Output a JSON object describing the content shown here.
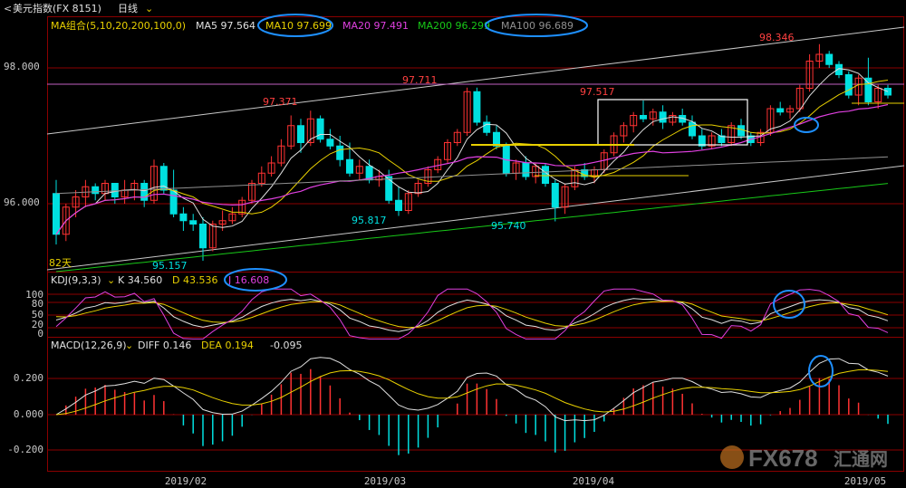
{
  "title": {
    "icon": "back-arrow-icon",
    "name": "美元指数(FX 8151)",
    "period": "日线",
    "dropdown_icon": "chevron-down-icon"
  },
  "ma_legend": {
    "group": "MA组合(5,10,20,200,100,0)",
    "items": [
      {
        "label": "MA5 97.564",
        "color": "#e0e0e0"
      },
      {
        "label": "MA10 97.699",
        "color": "#e8d000",
        "circled": true
      },
      {
        "label": "MA20 97.491",
        "color": "#e040e0"
      },
      {
        "label": "MA200 96.299",
        "color": "#18c818"
      },
      {
        "label": "MA100 96.689",
        "color": "#909090",
        "circled": true
      }
    ]
  },
  "kdj_legend": {
    "group": "KDJ(9,3,3)",
    "items": [
      {
        "label": "K 34.560",
        "color": "#e0e0e0"
      },
      {
        "label": "D 43.536",
        "color": "#e8d000"
      },
      {
        "label": "J 16.608",
        "color": "#e040e0",
        "circled": true
      }
    ]
  },
  "macd_legend": {
    "group": "MACD(12,26,9)",
    "items": [
      {
        "label": "DIFF 0.146",
        "color": "#e0e0e0"
      },
      {
        "label": "DEA 0.194",
        "color": "#e8d000"
      },
      {
        "label": "-0.095",
        "color": "#e0e0e0"
      }
    ]
  },
  "price_axis": {
    "ticks": [
      "98.000",
      "96.000"
    ]
  },
  "kdj_axis": {
    "ticks": [
      "100",
      "80",
      "50",
      "20",
      "0"
    ]
  },
  "macd_axis": {
    "ticks": [
      "0.200",
      "0.000",
      "-0.200"
    ]
  },
  "x_axis": {
    "ticks": [
      "2019/02",
      "2019/03",
      "2019/04",
      "2019/05"
    ]
  },
  "annotations": {
    "high1": "97.371",
    "high2": "97.711",
    "high3": "97.517",
    "high4": "98.346",
    "low1": "95.157",
    "low2": "95.817",
    "low3": "95.740",
    "days": "82天"
  },
  "watermark": {
    "text": "FX678",
    "text2": "汇通网"
  },
  "colors": {
    "up": "#ff3232",
    "down": "#00e0e0",
    "grid": "#8b0000",
    "ma5": "#e0e0e0",
    "ma10": "#e8d000",
    "ma20": "#e040e0",
    "ma100": "#909090",
    "ma200": "#18c818",
    "circle": "#1e90ff",
    "trend": "#c8c8c8"
  },
  "chart_data": [
    {
      "type": "candlestick",
      "title": "美元指数(FX 8151) 日线",
      "ylim": [
        95.0,
        98.6
      ],
      "x": [
        "2019/02",
        "2019/03",
        "2019/04",
        "2019/05"
      ],
      "ohlc": [
        [
          96.15,
          96.35,
          95.4,
          95.55
        ],
        [
          95.55,
          96.0,
          95.45,
          95.95
        ],
        [
          95.95,
          96.2,
          95.8,
          96.1
        ],
        [
          96.1,
          96.35,
          95.95,
          96.25
        ],
        [
          96.25,
          96.3,
          96.05,
          96.15
        ],
        [
          96.15,
          96.35,
          96.05,
          96.3
        ],
        [
          96.3,
          96.3,
          96.0,
          96.1
        ],
        [
          96.1,
          96.35,
          96.0,
          96.2
        ],
        [
          96.2,
          96.35,
          96.05,
          96.3
        ],
        [
          96.3,
          96.35,
          95.95,
          96.05
        ],
        [
          96.05,
          96.65,
          96.0,
          96.55
        ],
        [
          96.55,
          96.6,
          96.15,
          96.2
        ],
        [
          96.2,
          96.5,
          95.8,
          95.85
        ],
        [
          95.85,
          95.95,
          95.6,
          95.75
        ],
        [
          95.75,
          95.85,
          95.6,
          95.7
        ],
        [
          95.7,
          95.8,
          95.16,
          95.35
        ],
        [
          95.35,
          95.75,
          95.3,
          95.7
        ],
        [
          95.7,
          95.9,
          95.6,
          95.75
        ],
        [
          95.75,
          95.95,
          95.7,
          95.85
        ],
        [
          95.85,
          96.1,
          95.8,
          96.05
        ],
        [
          96.05,
          96.35,
          96.0,
          96.3
        ],
        [
          96.3,
          96.55,
          96.25,
          96.45
        ],
        [
          96.45,
          96.7,
          96.4,
          96.6
        ],
        [
          96.6,
          96.95,
          96.55,
          96.85
        ],
        [
          96.85,
          97.3,
          96.8,
          97.15
        ],
        [
          97.15,
          97.25,
          96.75,
          96.9
        ],
        [
          96.9,
          97.37,
          96.85,
          97.25
        ],
        [
          97.25,
          97.3,
          96.9,
          96.95
        ],
        [
          96.95,
          97.1,
          96.8,
          96.85
        ],
        [
          96.85,
          97.0,
          96.55,
          96.65
        ],
        [
          96.65,
          96.9,
          96.4,
          96.45
        ],
        [
          96.45,
          96.65,
          96.35,
          96.55
        ],
        [
          96.55,
          96.65,
          96.3,
          96.35
        ],
        [
          96.35,
          96.5,
          96.25,
          96.4
        ],
        [
          96.4,
          96.5,
          96.0,
          96.05
        ],
        [
          96.05,
          96.25,
          95.82,
          95.9
        ],
        [
          95.9,
          96.2,
          95.85,
          96.15
        ],
        [
          96.15,
          96.35,
          96.1,
          96.3
        ],
        [
          96.3,
          96.55,
          96.25,
          96.5
        ],
        [
          96.5,
          96.7,
          96.45,
          96.65
        ],
        [
          96.65,
          96.95,
          96.6,
          96.9
        ],
        [
          96.9,
          97.1,
          96.85,
          97.05
        ],
        [
          97.05,
          97.71,
          97.0,
          97.65
        ],
        [
          97.65,
          97.71,
          97.15,
          97.2
        ],
        [
          97.2,
          97.3,
          97.0,
          97.05
        ],
        [
          97.05,
          97.15,
          96.8,
          96.85
        ],
        [
          96.85,
          96.9,
          96.4,
          96.45
        ],
        [
          96.45,
          96.65,
          96.35,
          96.6
        ],
        [
          96.6,
          96.7,
          96.35,
          96.4
        ],
        [
          96.4,
          96.6,
          96.3,
          96.55
        ],
        [
          96.55,
          96.6,
          96.25,
          96.3
        ],
        [
          96.3,
          96.35,
          95.74,
          95.95
        ],
        [
          95.95,
          96.3,
          95.85,
          96.25
        ],
        [
          96.25,
          96.55,
          96.2,
          96.5
        ],
        [
          96.5,
          96.6,
          96.35,
          96.4
        ],
        [
          96.4,
          96.55,
          96.3,
          96.5
        ],
        [
          96.5,
          96.8,
          96.45,
          96.75
        ],
        [
          96.75,
          97.05,
          96.7,
          97.0
        ],
        [
          97.0,
          97.2,
          96.9,
          97.15
        ],
        [
          97.15,
          97.35,
          97.05,
          97.3
        ],
        [
          97.3,
          97.52,
          97.2,
          97.25
        ],
        [
          97.25,
          97.4,
          97.15,
          97.35
        ],
        [
          97.35,
          97.45,
          97.1,
          97.2
        ],
        [
          97.2,
          97.35,
          97.15,
          97.3
        ],
        [
          97.3,
          97.4,
          97.15,
          97.2
        ],
        [
          97.2,
          97.3,
          96.95,
          97.0
        ],
        [
          97.0,
          97.1,
          96.8,
          96.85
        ],
        [
          96.85,
          97.05,
          96.8,
          97.0
        ],
        [
          97.0,
          97.1,
          96.85,
          96.9
        ],
        [
          96.9,
          97.2,
          96.85,
          97.15
        ],
        [
          97.15,
          97.25,
          96.95,
          97.0
        ],
        [
          97.0,
          97.05,
          96.85,
          96.9
        ],
        [
          96.9,
          97.1,
          96.85,
          97.05
        ],
        [
          97.05,
          97.45,
          97.0,
          97.4
        ],
        [
          97.4,
          97.5,
          97.3,
          97.35
        ],
        [
          97.35,
          97.45,
          97.25,
          97.4
        ],
        [
          97.4,
          97.75,
          97.35,
          97.7
        ],
        [
          97.7,
          98.2,
          97.65,
          98.1
        ],
        [
          98.1,
          98.35,
          98.0,
          98.2
        ],
        [
          98.2,
          98.25,
          98.0,
          98.05
        ],
        [
          98.05,
          98.1,
          97.85,
          97.9
        ],
        [
          97.9,
          97.95,
          97.55,
          97.6
        ],
        [
          97.6,
          97.9,
          97.45,
          97.85
        ],
        [
          97.85,
          98.15,
          97.45,
          97.5
        ],
        [
          97.5,
          97.75,
          97.4,
          97.7
        ],
        [
          97.7,
          97.75,
          97.55,
          97.6
        ]
      ]
    },
    {
      "type": "line",
      "title": "KDJ(9,3,3)",
      "ylim": [
        0,
        110
      ],
      "series": [
        {
          "name": "K",
          "final": 34.56
        },
        {
          "name": "D",
          "final": 43.536
        },
        {
          "name": "J",
          "final": 16.608
        }
      ]
    },
    {
      "type": "bar",
      "title": "MACD(12,26,9)",
      "ylim": [
        -0.3,
        0.35
      ],
      "series": [
        {
          "name": "DIFF",
          "final": 0.146
        },
        {
          "name": "DEA",
          "final": 0.194
        },
        {
          "name": "MACD",
          "final": -0.095
        }
      ]
    }
  ]
}
